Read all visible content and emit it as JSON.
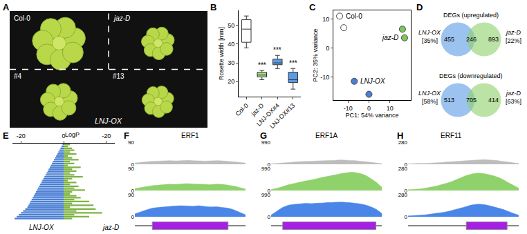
{
  "chart_data": [
    {
      "type": "image",
      "panel": "A",
      "labels": [
        "Col-0",
        "jaz-D",
        "#4",
        "#13"
      ],
      "group_label": "LNJ-OX"
    },
    {
      "type": "box",
      "panel": "B",
      "ylabel": "Rosette width [mm]",
      "categories": [
        "Col-0",
        "jaz-D",
        "LNJ-OX#4",
        "LNJ-OX#13"
      ],
      "boxes": [
        {
          "min": 38,
          "q1": 41,
          "median": 48,
          "q3": 53,
          "max": 55
        },
        {
          "min": 21,
          "q1": 22.5,
          "median": 23.5,
          "q3": 25,
          "max": 26
        },
        {
          "min": 27,
          "q1": 29,
          "median": 30,
          "q3": 32,
          "max": 34
        },
        {
          "min": 16,
          "q1": 19.5,
          "median": 21,
          "q3": 25,
          "max": 27
        }
      ],
      "colors": [
        "#ffffff",
        "#a8dd8a",
        "#5b9be6",
        "#5b9be6"
      ],
      "ylim": [
        12,
        58
      ],
      "yticks": [
        20,
        30,
        40,
        50
      ],
      "annotations": [
        {
          "category": "jaz-D",
          "text": "***"
        },
        {
          "category": "LNJ-OX#4",
          "text": "***"
        },
        {
          "category": "LNJ-OX#13",
          "text": "***"
        }
      ]
    },
    {
      "type": "scatter",
      "panel": "C",
      "xlabel": "PC1: 54% variance",
      "ylabel": "PC2: 35% variance",
      "xlim": [
        -17,
        20
      ],
      "xticks": [
        -10,
        0,
        10
      ],
      "ylim": [
        -18,
        13
      ],
      "yticks": [
        -10,
        0,
        10
      ],
      "series": [
        {
          "name": "Col-0",
          "color": "#ffffff",
          "x": [
            -14,
            -12
          ],
          "y": [
            11,
            7
          ]
        },
        {
          "name": "jaz-D",
          "color": "#7cc85a",
          "x": [
            16,
            17
          ],
          "y": [
            6.5,
            3.5
          ]
        },
        {
          "name": "LNJ-OX",
          "color": "#4a7fd4",
          "x": [
            -7,
            0
          ],
          "y": [
            -11.5,
            -16
          ]
        }
      ]
    },
    {
      "type": "venn",
      "panel": "D",
      "venns": [
        {
          "title": "DEGs (upregulated)",
          "sets": [
            "LNJ-OX",
            "jaz-D"
          ],
          "colors": [
            "#5b9be6",
            "#8fd16b"
          ],
          "only": [
            455,
            893
          ],
          "overlap": 246,
          "percent": [
            {
              "value": 35,
              "label": "[35%]"
            },
            {
              "value": 22,
              "label": "[22%]"
            }
          ]
        },
        {
          "title": "DEGs (downregulated)",
          "sets": [
            "LNJ-OX",
            "jaz-D"
          ],
          "colors": [
            "#5b9be6",
            "#8fd16b"
          ],
          "only": [
            513,
            414
          ],
          "overlap": 705,
          "percent": [
            {
              "value": 58,
              "label": "[58%]"
            },
            {
              "value": 63,
              "label": "[63%]"
            }
          ]
        }
      ]
    },
    {
      "type": "bar",
      "panel": "E",
      "orientation": "horizontal",
      "xlabel": "LogP",
      "xlim": [
        -24,
        0
      ],
      "xticks": [
        -20,
        0
      ],
      "categories": [
        null,
        null,
        null,
        null,
        null,
        null,
        null,
        null,
        null,
        null,
        null,
        null,
        null,
        null,
        null,
        null,
        null,
        null,
        null,
        null,
        null,
        null,
        null,
        null,
        null,
        null,
        null,
        null,
        null,
        null,
        null,
        null,
        null,
        null,
        null,
        null,
        null,
        null,
        null,
        null
      ],
      "series": [
        {
          "name": "LNJ-OX",
          "color": "#4a7fd4",
          "values": [
            -0.5,
            -1,
            -1.5,
            -2,
            -2.5,
            -3,
            -3.5,
            -4,
            -4.5,
            -5,
            -5.5,
            -6,
            -6.5,
            -7,
            -7.5,
            -8,
            -8.5,
            -9,
            -9.5,
            -10,
            -10.5,
            -11,
            -11.5,
            -12,
            -12.5,
            -13,
            -13.5,
            -14,
            -14.5,
            -15,
            -15.5,
            -16,
            -16.5,
            -17,
            -18,
            -19,
            -20,
            -21,
            -22,
            -23
          ]
        },
        {
          "name": "jaz-D",
          "color": "#7cb342",
          "values": [
            -3,
            -2,
            -4,
            -5,
            -3,
            -6,
            -2,
            -4,
            -7,
            -3,
            -5,
            -2,
            -8,
            -4,
            -6,
            -3,
            -5,
            -9,
            -4,
            -2,
            -6,
            -3,
            -7,
            -5,
            -10,
            -4,
            -3,
            -6,
            -8,
            -5,
            -12,
            -4,
            -14,
            -3,
            -15,
            -6,
            -18,
            -5,
            -12,
            -4
          ]
        }
      ]
    },
    {
      "type": "area",
      "panel": "F",
      "title": "ERF1",
      "tick_labels": "y",
      "x": [
        0,
        1,
        2,
        3,
        4,
        5,
        6,
        7,
        8,
        9,
        10,
        11,
        12,
        13,
        14,
        15,
        16,
        17,
        18,
        19
      ],
      "xlim": [
        0,
        19
      ],
      "ylim": [
        0,
        90
      ],
      "yticks": [
        0,
        90
      ],
      "gene_span": [
        3,
        16
      ],
      "series": [
        {
          "name": "Col-0",
          "color": "#bdbdbd",
          "values": [
            5,
            8,
            10,
            12,
            13,
            14,
            15,
            14,
            15,
            16,
            15,
            14,
            13,
            14,
            15,
            14,
            12,
            10,
            8,
            5
          ]
        },
        {
          "name": "jaz-D",
          "color": "#8fd16b",
          "values": [
            8,
            12,
            16,
            20,
            22,
            24,
            26,
            25,
            27,
            28,
            27,
            26,
            25,
            24,
            26,
            25,
            22,
            18,
            12,
            6
          ]
        },
        {
          "name": "LNJ-OX",
          "color": "#4a86e8",
          "values": [
            12,
            20,
            28,
            35,
            38,
            40,
            42,
            44,
            45,
            44,
            43,
            45,
            42,
            40,
            41,
            38,
            35,
            28,
            18,
            8
          ]
        }
      ]
    },
    {
      "type": "area",
      "panel": "G",
      "title": "ERF1A",
      "tick_labels": "y",
      "x": [
        0,
        1,
        2,
        3,
        4,
        5,
        6,
        7,
        8,
        9,
        10,
        11,
        12,
        13,
        14,
        15,
        16,
        17,
        18,
        19
      ],
      "xlim": [
        0,
        19
      ],
      "ylim": [
        0,
        990
      ],
      "yticks": [
        0,
        990
      ],
      "gene_span": [
        2,
        18
      ],
      "series": [
        {
          "name": "Col-0",
          "color": "#bdbdbd",
          "values": [
            20,
            40,
            60,
            80,
            100,
            120,
            130,
            140,
            150,
            160,
            170,
            180,
            190,
            180,
            170,
            150,
            120,
            90,
            60,
            30
          ]
        },
        {
          "name": "jaz-D",
          "color": "#8fd16b",
          "values": [
            50,
            100,
            180,
            260,
            320,
            380,
            430,
            480,
            540,
            600,
            650,
            700,
            760,
            800,
            820,
            780,
            700,
            560,
            380,
            150
          ]
        },
        {
          "name": "LNJ-OX",
          "color": "#4a86e8",
          "values": [
            80,
            250,
            420,
            520,
            560,
            580,
            600,
            590,
            610,
            620,
            640,
            650,
            660,
            640,
            620,
            590,
            540,
            460,
            340,
            150
          ]
        }
      ]
    },
    {
      "type": "area",
      "panel": "H",
      "title": "ERF11",
      "tick_labels": "y",
      "x": [
        0,
        1,
        2,
        3,
        4,
        5,
        6,
        7,
        8,
        9,
        10,
        11,
        12,
        13,
        14,
        15,
        16,
        17,
        18,
        19
      ],
      "xlim": [
        0,
        19
      ],
      "ylim": [
        0,
        280
      ],
      "yticks": [
        0,
        280
      ],
      "gene_span": [
        10,
        17
      ],
      "series": [
        {
          "name": "Col-0",
          "color": "#bdbdbd",
          "values": [
            5,
            8,
            10,
            12,
            15,
            20,
            25,
            30,
            35,
            40,
            45,
            50,
            55,
            60,
            55,
            50,
            40,
            30,
            20,
            10
          ]
        },
        {
          "name": "jaz-D",
          "color": "#8fd16b",
          "values": [
            10,
            15,
            20,
            30,
            45,
            60,
            80,
            100,
            130,
            160,
            190,
            210,
            220,
            215,
            200,
            180,
            150,
            110,
            70,
            30
          ]
        },
        {
          "name": "LNJ-OX",
          "color": "#4a86e8",
          "values": [
            10,
            15,
            20,
            25,
            35,
            45,
            55,
            70,
            90,
            110,
            130,
            150,
            160,
            155,
            140,
            120,
            100,
            75,
            45,
            20
          ]
        }
      ]
    }
  ]
}
